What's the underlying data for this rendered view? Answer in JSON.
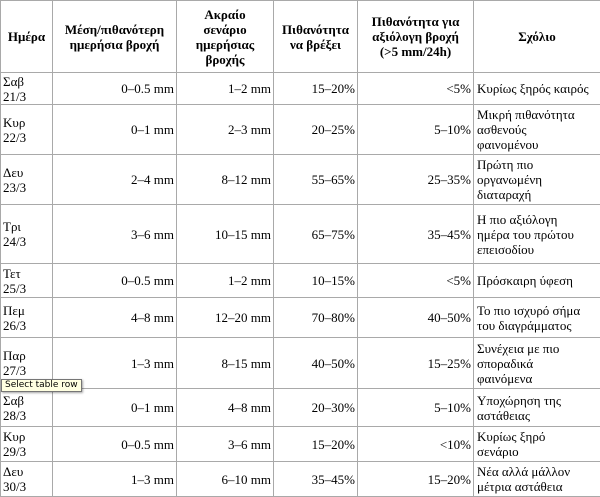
{
  "table": {
    "headers": [
      "Ημέρα",
      "Μέση/πιθανότερη\nημερήσια βροχή",
      "Ακραίο\nσενάριο\nημερήσιας\nβροχής",
      "Πιθανότητα\nνα βρέξει",
      "Πιθανότητα για\nαξιόλογη βροχή\n(>5 mm/24h)",
      "Σχόλιο"
    ],
    "rows": [
      {
        "day": "Σαβ\n21/3",
        "mean": "0–0.5 mm",
        "extreme": "1–2 mm",
        "prob": "15–20%",
        "sig": "<5%",
        "comment": "Κυρίως ξηρός καιρός"
      },
      {
        "day": "Κυρ\n22/3",
        "mean": "0–1 mm",
        "extreme": "2–3 mm",
        "prob": "20–25%",
        "sig": "5–10%",
        "comment": "Μικρή πιθανότητα\nασθενούς\nφαινομένου"
      },
      {
        "day": "Δευ\n23/3",
        "mean": "2–4 mm",
        "extreme": "8–12 mm",
        "prob": "55–65%",
        "sig": "25–35%",
        "comment": "Πρώτη πιο\nοργανωμένη\nδιαταραχή"
      },
      {
        "day": "Τρι\n24/3",
        "mean": "3–6 mm",
        "extreme": "10–15 mm",
        "prob": "65–75%",
        "sig": "35–45%",
        "comment": "Η πιο αξιόλογη\nημέρα του πρώτου\nεπεισοδίου"
      },
      {
        "day": "Τετ\n25/3",
        "mean": "0–0.5 mm",
        "extreme": "1–2 mm",
        "prob": "10–15%",
        "sig": "<5%",
        "comment": "Πρόσκαιρη ύφεση"
      },
      {
        "day": "Πεμ\n26/3",
        "mean": "4–8 mm",
        "extreme": "12–20 mm",
        "prob": "70–80%",
        "sig": "40–50%",
        "comment": "Το πιο ισχυρό σήμα\nτου διαγράμματος"
      },
      {
        "day": "Παρ\n27/3",
        "mean": "1–3 mm",
        "extreme": "8–15 mm",
        "prob": "40–50%",
        "sig": "15–25%",
        "comment": "Συνέχεια με πιο\nσποραδικά\nφαινόμενα"
      },
      {
        "day": "Σαβ\n28/3",
        "mean": "0–1 mm",
        "extreme": "4–8 mm",
        "prob": "20–30%",
        "sig": "5–10%",
        "comment": "Υποχώρηση της\nαστάθειας"
      },
      {
        "day": "Κυρ\n29/3",
        "mean": "0–0.5 mm",
        "extreme": "3–6 mm",
        "prob": "15–20%",
        "sig": "<10%",
        "comment": "Κυρίως ξηρό\nσενάριο"
      },
      {
        "day": "Δευ\n30/3",
        "mean": "1–3 mm",
        "extreme": "6–10 mm",
        "prob": "35–45%",
        "sig": "15–20%",
        "comment": "Νέα αλλά μάλλον\nμέτρια αστάθεια"
      }
    ]
  },
  "tooltip": {
    "text": "Select table row"
  }
}
